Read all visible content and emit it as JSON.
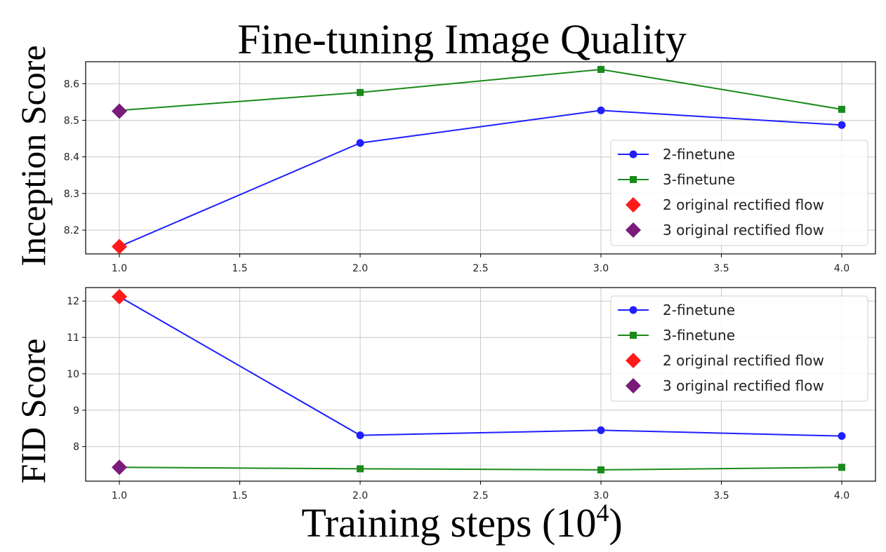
{
  "chart_data": {
    "title": "Fine-tuning Image Quality",
    "xlabel": "Training steps (10",
    "xlabel_exp": "4",
    "xlabel_close": ")",
    "type": "line",
    "x": [
      1.0,
      2.0,
      3.0,
      4.0
    ],
    "xlim": [
      0.86,
      4.14
    ],
    "xticks": [
      "1.0",
      "1.5",
      "2.0",
      "2.5",
      "3.0",
      "3.5",
      "4.0"
    ],
    "legend_location": "lower-right (top panel), upper-right (bottom panel)",
    "grid": true,
    "colors": {
      "2-finetune": "#1f1fff",
      "3-finetune": "#1a8a1a",
      "2-orig": "#ff1a1a",
      "3-orig": "#7a1a7a"
    },
    "panels": [
      {
        "ylabel": "Inception Score",
        "ylim": [
          8.135,
          8.66
        ],
        "yticks": [
          "8.2",
          "8.3",
          "8.4",
          "8.5",
          "8.6"
        ],
        "series": [
          {
            "name": "2-finetune",
            "marker": "circle",
            "values": [
              8.155,
              8.438,
              8.527,
              8.487
            ]
          },
          {
            "name": "3-finetune",
            "marker": "square",
            "values": [
              8.527,
              8.576,
              8.639,
              8.53
            ]
          }
        ],
        "points": [
          {
            "name": "2 original rectified flow",
            "marker": "diamond",
            "x": 1.0,
            "y": 8.155
          },
          {
            "name": "3 original rectified flow",
            "marker": "diamond",
            "x": 1.0,
            "y": 8.525
          }
        ]
      },
      {
        "ylabel": "FID Score",
        "ylim": [
          7.05,
          12.37
        ],
        "yticks": [
          "8",
          "9",
          "10",
          "11",
          "12"
        ],
        "series": [
          {
            "name": "2-finetune",
            "marker": "circle",
            "values": [
              12.12,
              8.31,
              8.45,
              8.29
            ]
          },
          {
            "name": "3-finetune",
            "marker": "square",
            "values": [
              7.43,
              7.39,
              7.36,
              7.43
            ]
          }
        ],
        "points": [
          {
            "name": "2 original rectified flow",
            "marker": "diamond",
            "x": 1.0,
            "y": 12.12
          },
          {
            "name": "3 original rectified flow",
            "marker": "diamond",
            "x": 1.0,
            "y": 7.43
          }
        ]
      }
    ]
  }
}
